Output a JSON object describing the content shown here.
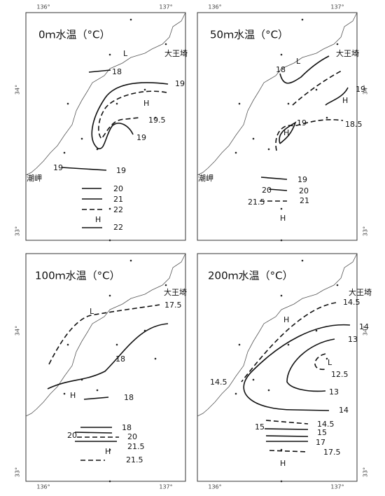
{
  "grid_labels": {
    "lon": [
      "136°",
      "137°"
    ],
    "lat": [
      "34°",
      "33°"
    ]
  },
  "panels": [
    {
      "title": "0ｍ水温（°C）",
      "labels": [
        "大王埼",
        "潮岬",
        "L",
        "H",
        "H",
        "18",
        "19",
        "19",
        "19.5",
        "19",
        "19",
        "20",
        "21",
        "22",
        "22"
      ]
    },
    {
      "title": "50ｍ水温（°C）",
      "labels": [
        "大王埼",
        "潮岬",
        "L",
        "18",
        "19",
        "H",
        "18.5",
        "H",
        "19",
        "19",
        "20",
        "20",
        "21.5",
        "21",
        "H"
      ]
    },
    {
      "title": "100ｍ水温（°C）",
      "labels": [
        "大王埼",
        "17.5",
        "L",
        "18",
        "H",
        "18",
        "18",
        "20",
        "20",
        "21.5",
        "H",
        "21.5"
      ]
    },
    {
      "title": "200ｍ水温（°C）",
      "labels": [
        "大王埼",
        "14.5",
        "H",
        "14.5",
        "14",
        "14",
        "13",
        "13",
        "12.5",
        "L",
        "14.5",
        "15",
        "15",
        "17",
        "17.5",
        "H"
      ]
    }
  ]
}
